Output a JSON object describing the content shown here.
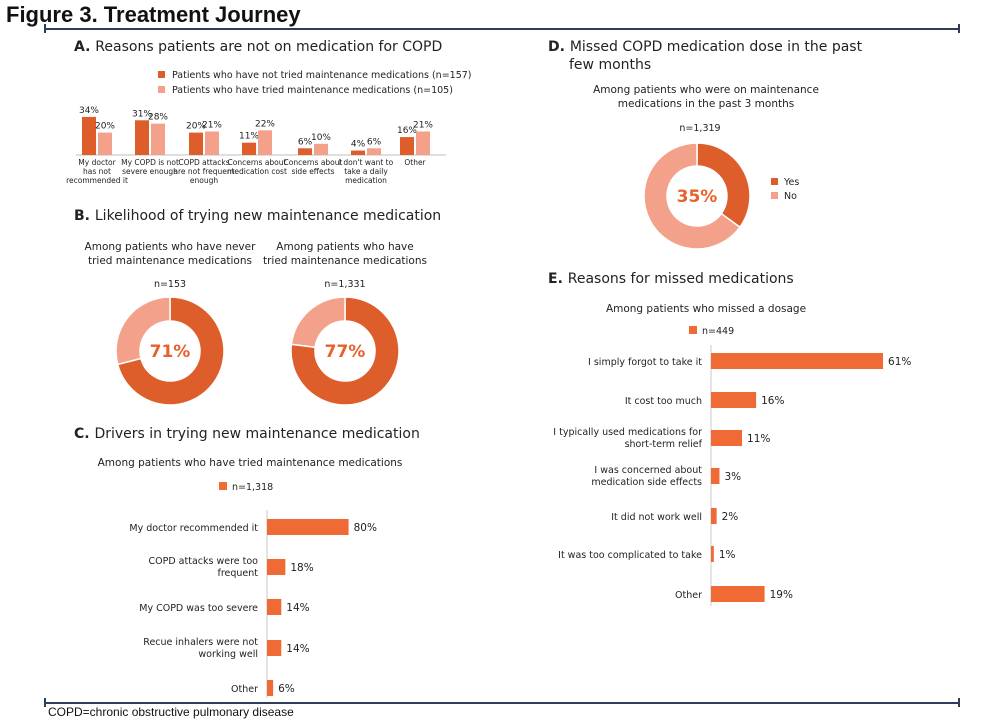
{
  "title": "Figure 3. Treatment Journey",
  "footnote": "COPD=chronic obstructive pulmonary disease",
  "colors": {
    "dark": "#dd5d2b",
    "light": "#f3a18a",
    "bar": "#ef6a34",
    "accent": "#e8612c",
    "rule": "#2e3d5c"
  },
  "chart_data": [
    {
      "id": "A",
      "type": "bar",
      "title": "Reasons patients are not on medication for COPD",
      "title_letter": "A.",
      "categories": [
        [
          "My doctor",
          "has not",
          "recommended it"
        ],
        [
          "My COPD is not",
          "severe enough"
        ],
        [
          "COPD attacks",
          "are not frequent",
          "enough"
        ],
        [
          "Concerns about",
          "medication cost"
        ],
        [
          "Concerns about",
          "side effects"
        ],
        [
          "I don't want to",
          "take a daily",
          "medication"
        ],
        [
          "Other"
        ]
      ],
      "series": [
        {
          "name": "Patients who have not tried maintenance medications (n=157)",
          "values": [
            34,
            31,
            20,
            11,
            6,
            4,
            16
          ],
          "color": "#dd5d2b"
        },
        {
          "name": "Patients who have tried maintenance medications (n=105)",
          "values": [
            20,
            28,
            21,
            22,
            10,
            6,
            21
          ],
          "color": "#f3a18a"
        }
      ],
      "unit": "%",
      "ylim": [
        0,
        40
      ]
    },
    {
      "id": "B",
      "type": "pie",
      "title": "Likelihood of trying new maintenance medication",
      "title_letter": "B.",
      "charts": [
        {
          "subtitle": [
            "Among patients who have never",
            "tried maintenance medications"
          ],
          "n": "n=153",
          "value": 71,
          "label": "71%"
        },
        {
          "subtitle": [
            "Among patients who have",
            "tried maintenance medications"
          ],
          "n": "n=1,331",
          "value": 77,
          "label": "77%"
        }
      ]
    },
    {
      "id": "C",
      "type": "bar",
      "orientation": "horizontal",
      "title": "Drivers in trying new maintenance medication",
      "title_letter": "C.",
      "subtitle": "Among patients who have tried maintenance medications",
      "legend": "n=1,318",
      "categories": [
        [
          "My doctor recommended it"
        ],
        [
          "COPD attacks were too",
          "frequent"
        ],
        [
          "My COPD was too severe"
        ],
        [
          "Recue inhalers were not",
          "working well"
        ],
        [
          "Other"
        ]
      ],
      "values": [
        80,
        18,
        14,
        14,
        6
      ],
      "unit": "%",
      "xlim": [
        0,
        100
      ]
    },
    {
      "id": "D",
      "type": "pie",
      "title": [
        "Missed COPD medication dose in the past",
        "few months"
      ],
      "title_letter": "D.",
      "subtitle": [
        "Among patients who were on maintenance",
        "medications in the past 3 months"
      ],
      "n": "n=1,319",
      "slices": [
        {
          "label": "Yes",
          "value": 35
        },
        {
          "label": "No",
          "value": 65
        }
      ],
      "center_label": "35%"
    },
    {
      "id": "E",
      "type": "bar",
      "orientation": "horizontal",
      "title": "Reasons for missed medications",
      "title_letter": "E.",
      "subtitle": "Among patients who missed a dosage",
      "legend": "n=449",
      "categories": [
        [
          "I simply forgot to take it"
        ],
        [
          "It cost too much"
        ],
        [
          "I typically used medications for",
          "short-term relief"
        ],
        [
          "I was concerned about",
          "medication side effects"
        ],
        [
          "It did not work well"
        ],
        [
          "It was too complicated to take"
        ],
        [
          "Other"
        ]
      ],
      "values": [
        61,
        16,
        11,
        3,
        2,
        1,
        19
      ],
      "unit": "%",
      "xlim": [
        0,
        61
      ]
    }
  ]
}
